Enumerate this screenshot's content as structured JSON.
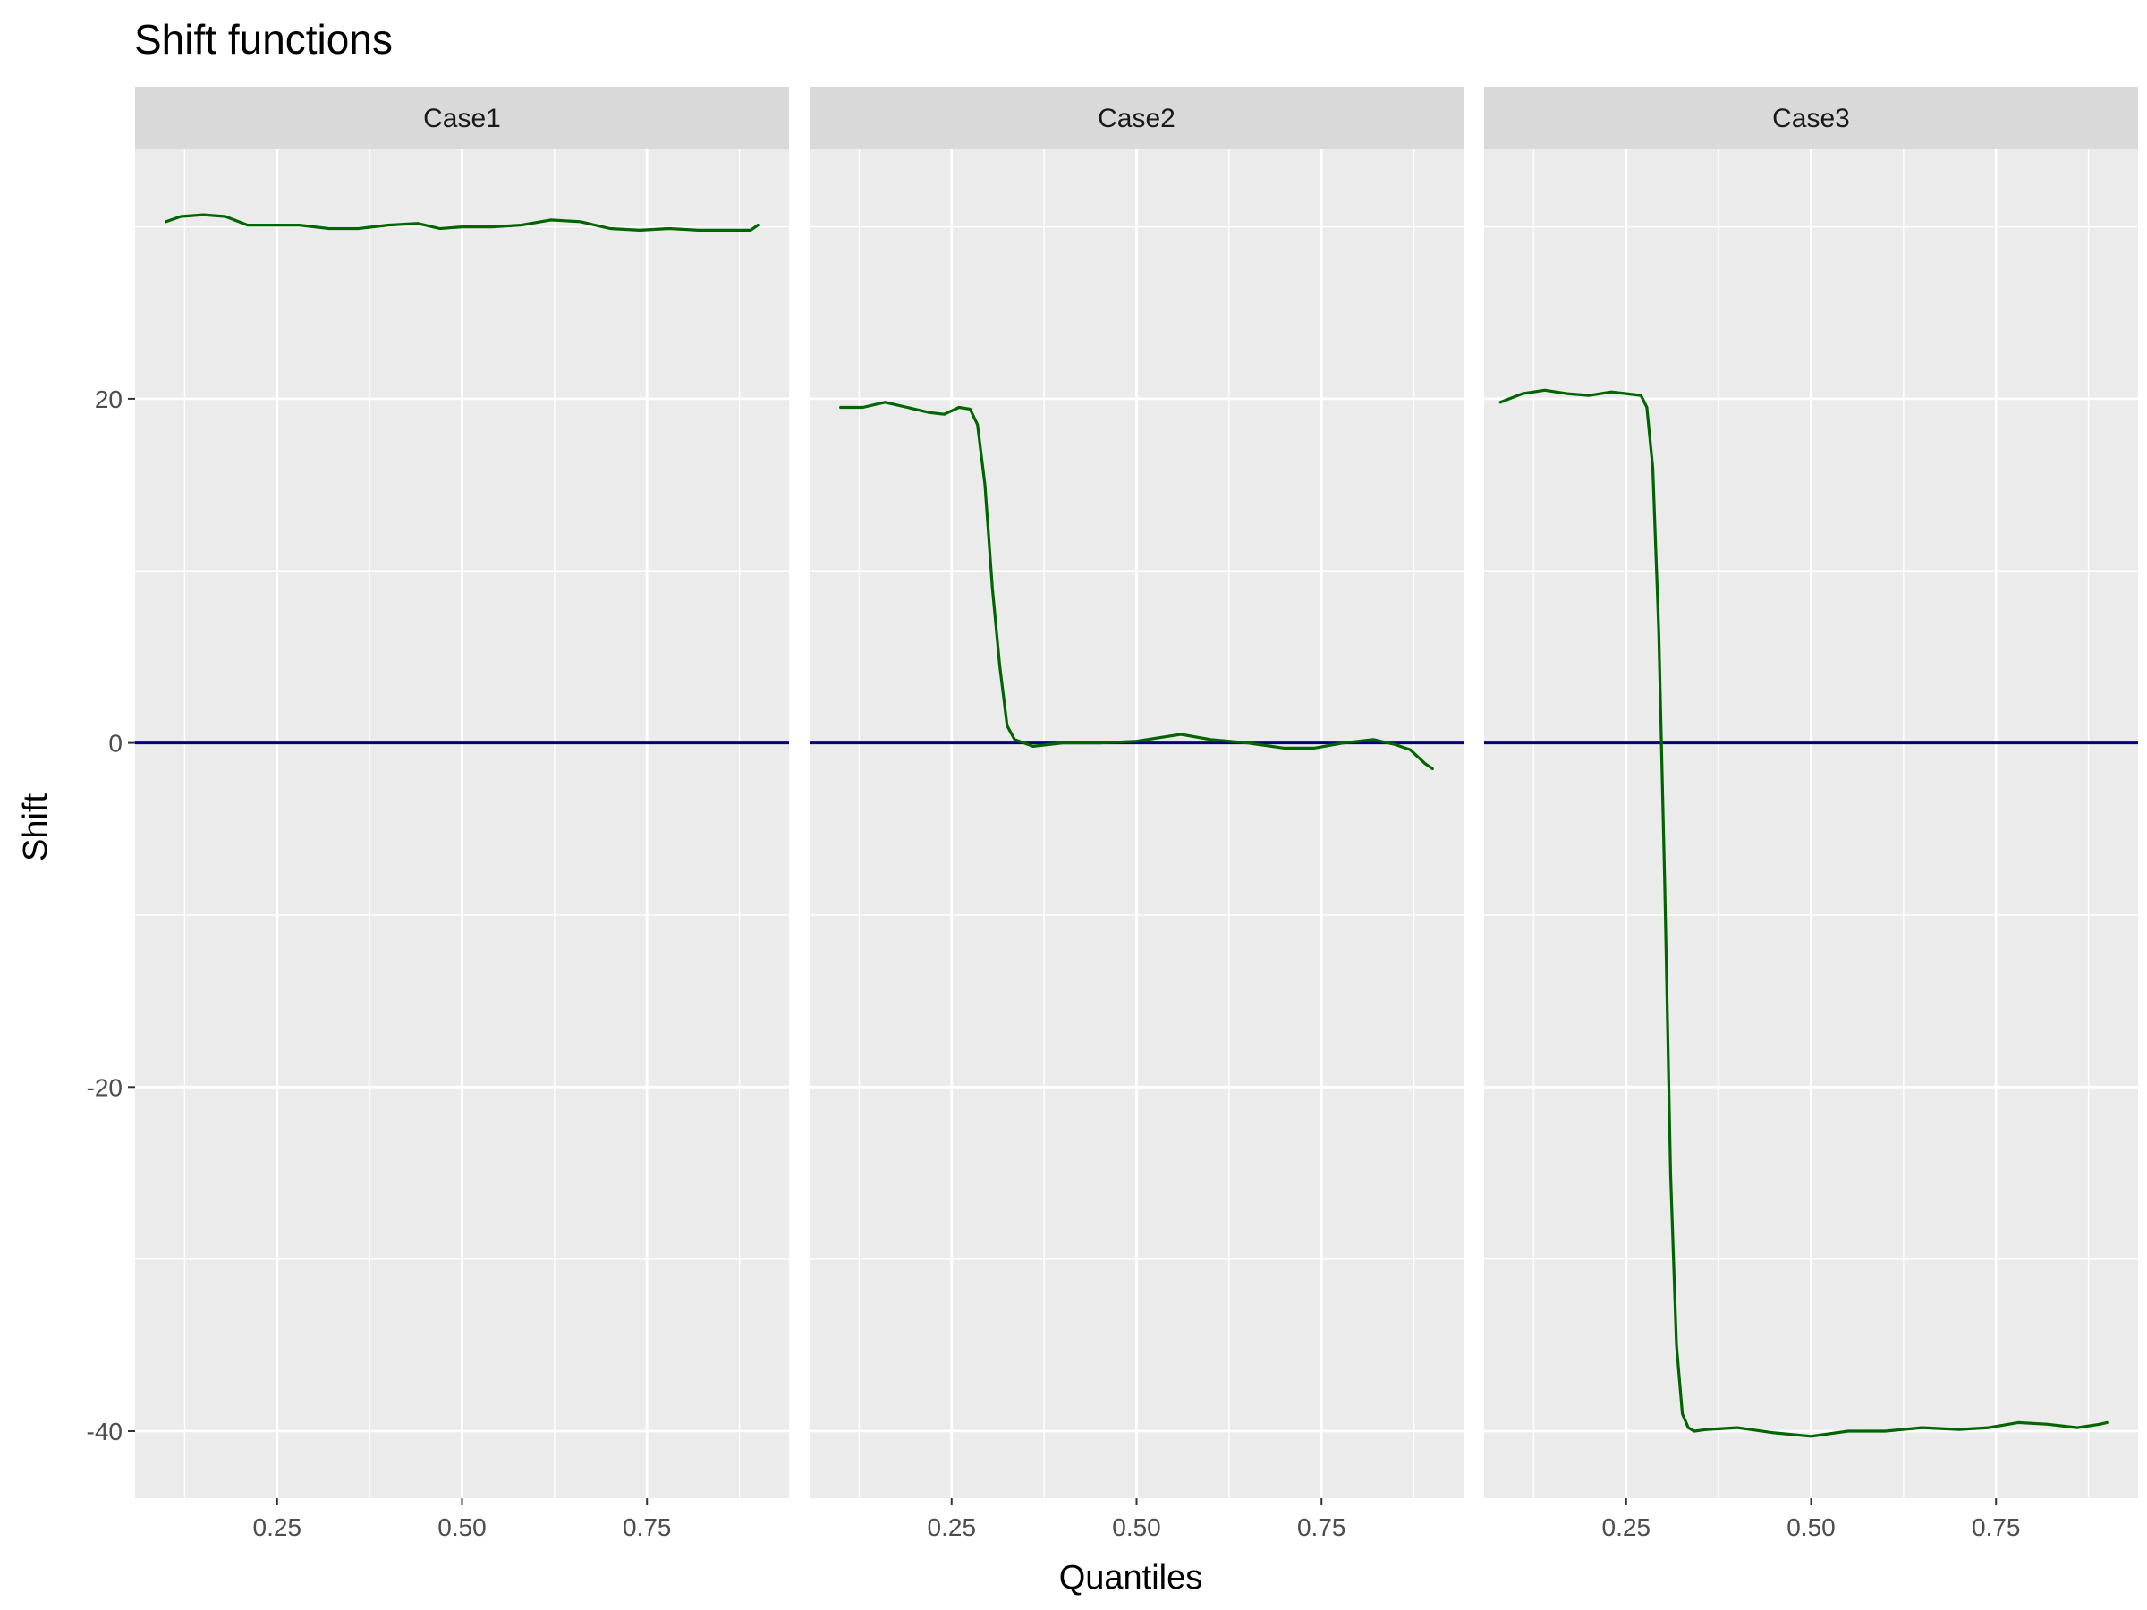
{
  "chart_data": {
    "type": "line",
    "title": "Shift functions",
    "xlabel": "Quantiles",
    "ylabel": "Shift",
    "xlim": [
      0.058,
      0.942
    ],
    "ylim": [
      -43.9,
      34.5
    ],
    "x_ticks": [
      0.25,
      0.5,
      0.75
    ],
    "x_tick_labels": [
      "0.25",
      "0.50",
      "0.75"
    ],
    "x_minor_ticks": [
      0.125,
      0.375,
      0.625,
      0.875
    ],
    "y_ticks": [
      -40,
      -20,
      0,
      20
    ],
    "y_tick_labels": [
      "-40",
      "-20",
      "0",
      "20"
    ],
    "y_minor_ticks": [
      -30,
      -10,
      10,
      30
    ],
    "grid": true,
    "reference_line": {
      "y": 0,
      "color": "#000080"
    },
    "line_color": "#006400",
    "legend": "none",
    "panels": [
      {
        "label": "Case1",
        "x": [
          0.1,
          0.12,
          0.15,
          0.18,
          0.21,
          0.25,
          0.28,
          0.32,
          0.36,
          0.4,
          0.44,
          0.47,
          0.5,
          0.54,
          0.58,
          0.62,
          0.66,
          0.7,
          0.74,
          0.78,
          0.82,
          0.86,
          0.89,
          0.9
        ],
        "y": [
          30.3,
          30.6,
          30.7,
          30.6,
          30.1,
          30.1,
          30.1,
          29.9,
          29.9,
          30.1,
          30.2,
          29.9,
          30.0,
          30.0,
          30.1,
          30.4,
          30.3,
          29.9,
          29.8,
          29.9,
          29.8,
          29.8,
          29.8,
          30.1
        ]
      },
      {
        "label": "Case2",
        "x": [
          0.1,
          0.13,
          0.16,
          0.19,
          0.22,
          0.24,
          0.26,
          0.275,
          0.285,
          0.295,
          0.305,
          0.315,
          0.325,
          0.335,
          0.36,
          0.4,
          0.45,
          0.5,
          0.53,
          0.56,
          0.6,
          0.65,
          0.7,
          0.74,
          0.78,
          0.82,
          0.85,
          0.87,
          0.89,
          0.9
        ],
        "y": [
          19.5,
          19.5,
          19.8,
          19.5,
          19.2,
          19.1,
          19.5,
          19.4,
          18.5,
          15.0,
          9.0,
          4.5,
          1.0,
          0.2,
          -0.2,
          0.0,
          0.0,
          0.1,
          0.3,
          0.5,
          0.2,
          0.0,
          -0.3,
          -0.3,
          0.0,
          0.2,
          -0.1,
          -0.4,
          -1.2,
          -1.5
        ]
      },
      {
        "label": "Case3",
        "x": [
          0.08,
          0.11,
          0.14,
          0.17,
          0.2,
          0.23,
          0.25,
          0.27,
          0.278,
          0.286,
          0.294,
          0.302,
          0.31,
          0.318,
          0.326,
          0.334,
          0.342,
          0.36,
          0.4,
          0.45,
          0.5,
          0.55,
          0.6,
          0.65,
          0.7,
          0.74,
          0.78,
          0.82,
          0.86,
          0.89,
          0.9
        ],
        "y": [
          19.8,
          20.3,
          20.5,
          20.3,
          20.2,
          20.4,
          20.3,
          20.2,
          19.5,
          16.0,
          6.5,
          -8.0,
          -25.0,
          -35.0,
          -39.0,
          -39.8,
          -40.0,
          -39.9,
          -39.8,
          -40.1,
          -40.3,
          -40.0,
          -40.0,
          -39.8,
          -39.9,
          -39.8,
          -39.5,
          -39.6,
          -39.8,
          -39.6,
          -39.5
        ]
      }
    ]
  }
}
